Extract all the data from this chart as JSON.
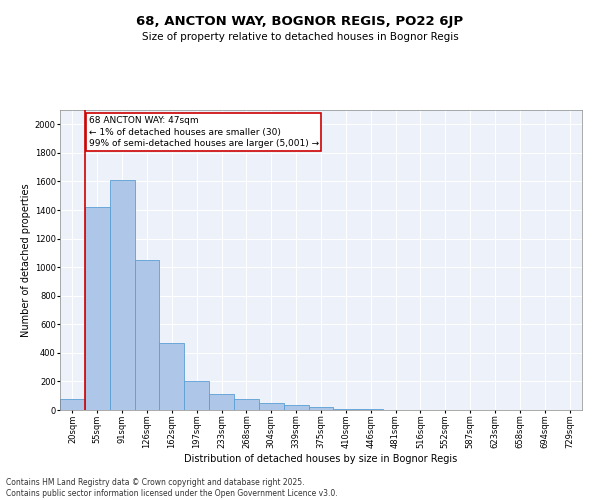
{
  "title_line1": "68, ANCTON WAY, BOGNOR REGIS, PO22 6JP",
  "title_line2": "Size of property relative to detached houses in Bognor Regis",
  "xlabel": "Distribution of detached houses by size in Bognor Regis",
  "ylabel": "Number of detached properties",
  "categories": [
    "20sqm",
    "55sqm",
    "91sqm",
    "126sqm",
    "162sqm",
    "197sqm",
    "233sqm",
    "268sqm",
    "304sqm",
    "339sqm",
    "375sqm",
    "410sqm",
    "446sqm",
    "481sqm",
    "516sqm",
    "552sqm",
    "587sqm",
    "623sqm",
    "658sqm",
    "694sqm",
    "729sqm"
  ],
  "values": [
    80,
    1420,
    1610,
    1050,
    470,
    200,
    115,
    75,
    50,
    35,
    20,
    10,
    5,
    3,
    2,
    1,
    1,
    1,
    0,
    0,
    0
  ],
  "bar_color": "#aec6e8",
  "bar_edge_color": "#5a9fd4",
  "annotation_box_text": "68 ANCTON WAY: 47sqm\n← 1% of detached houses are smaller (30)\n99% of semi-detached houses are larger (5,001) →",
  "vline_color": "#cc0000",
  "box_edge_color": "#cc0000",
  "ylim": [
    0,
    2100
  ],
  "yticks": [
    0,
    200,
    400,
    600,
    800,
    1000,
    1200,
    1400,
    1600,
    1800,
    2000
  ],
  "background_color": "#edf2fa",
  "footer_line1": "Contains HM Land Registry data © Crown copyright and database right 2025.",
  "footer_line2": "Contains public sector information licensed under the Open Government Licence v3.0.",
  "title_fontsize": 9.5,
  "subtitle_fontsize": 7.5,
  "axis_label_fontsize": 7,
  "tick_fontsize": 6,
  "annotation_fontsize": 6.5,
  "footer_fontsize": 5.5
}
